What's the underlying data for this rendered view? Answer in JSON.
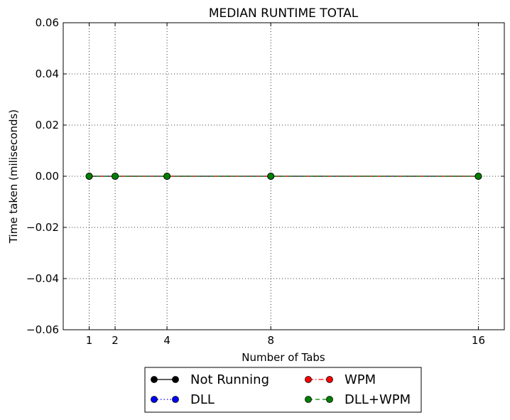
{
  "chart_data": {
    "type": "line",
    "title": "MEDIAN RUNTIME TOTAL",
    "xlabel": "Number of Tabs",
    "ylabel": "Time taken (miliseconds)",
    "x": [
      1,
      2,
      4,
      8,
      16
    ],
    "xticks": [
      1,
      2,
      4,
      8,
      16
    ],
    "xtick_labels": [
      "1",
      "2",
      "4",
      "8",
      "16"
    ],
    "xlim": [
      0,
      17
    ],
    "ylim": [
      -0.06,
      0.06
    ],
    "yticks": [
      -0.06,
      -0.04,
      -0.02,
      0.0,
      0.02,
      0.04,
      0.06
    ],
    "ytick_labels": [
      "−0.06",
      "−0.04",
      "−0.02",
      "0.00",
      "0.02",
      "0.04",
      "0.06"
    ],
    "grid": true,
    "legend_position": "bottom-center",
    "legend_columns": 2,
    "series": [
      {
        "name": "Not Running",
        "values": [
          0,
          0,
          0,
          0,
          0
        ],
        "color": "#000000",
        "linestyle": "solid",
        "marker": "circle"
      },
      {
        "name": "DLL",
        "values": [
          0,
          0,
          0,
          0,
          0
        ],
        "color": "#0000ff",
        "linestyle": "dotted",
        "marker": "circle"
      },
      {
        "name": "WPM",
        "values": [
          0,
          0,
          0,
          0,
          0
        ],
        "color": "#ff0000",
        "linestyle": "dashdot",
        "marker": "circle"
      },
      {
        "name": "DLL+WPM",
        "values": [
          0,
          0,
          0,
          0,
          0
        ],
        "color": "#008000",
        "linestyle": "dashed",
        "marker": "circle"
      }
    ]
  }
}
